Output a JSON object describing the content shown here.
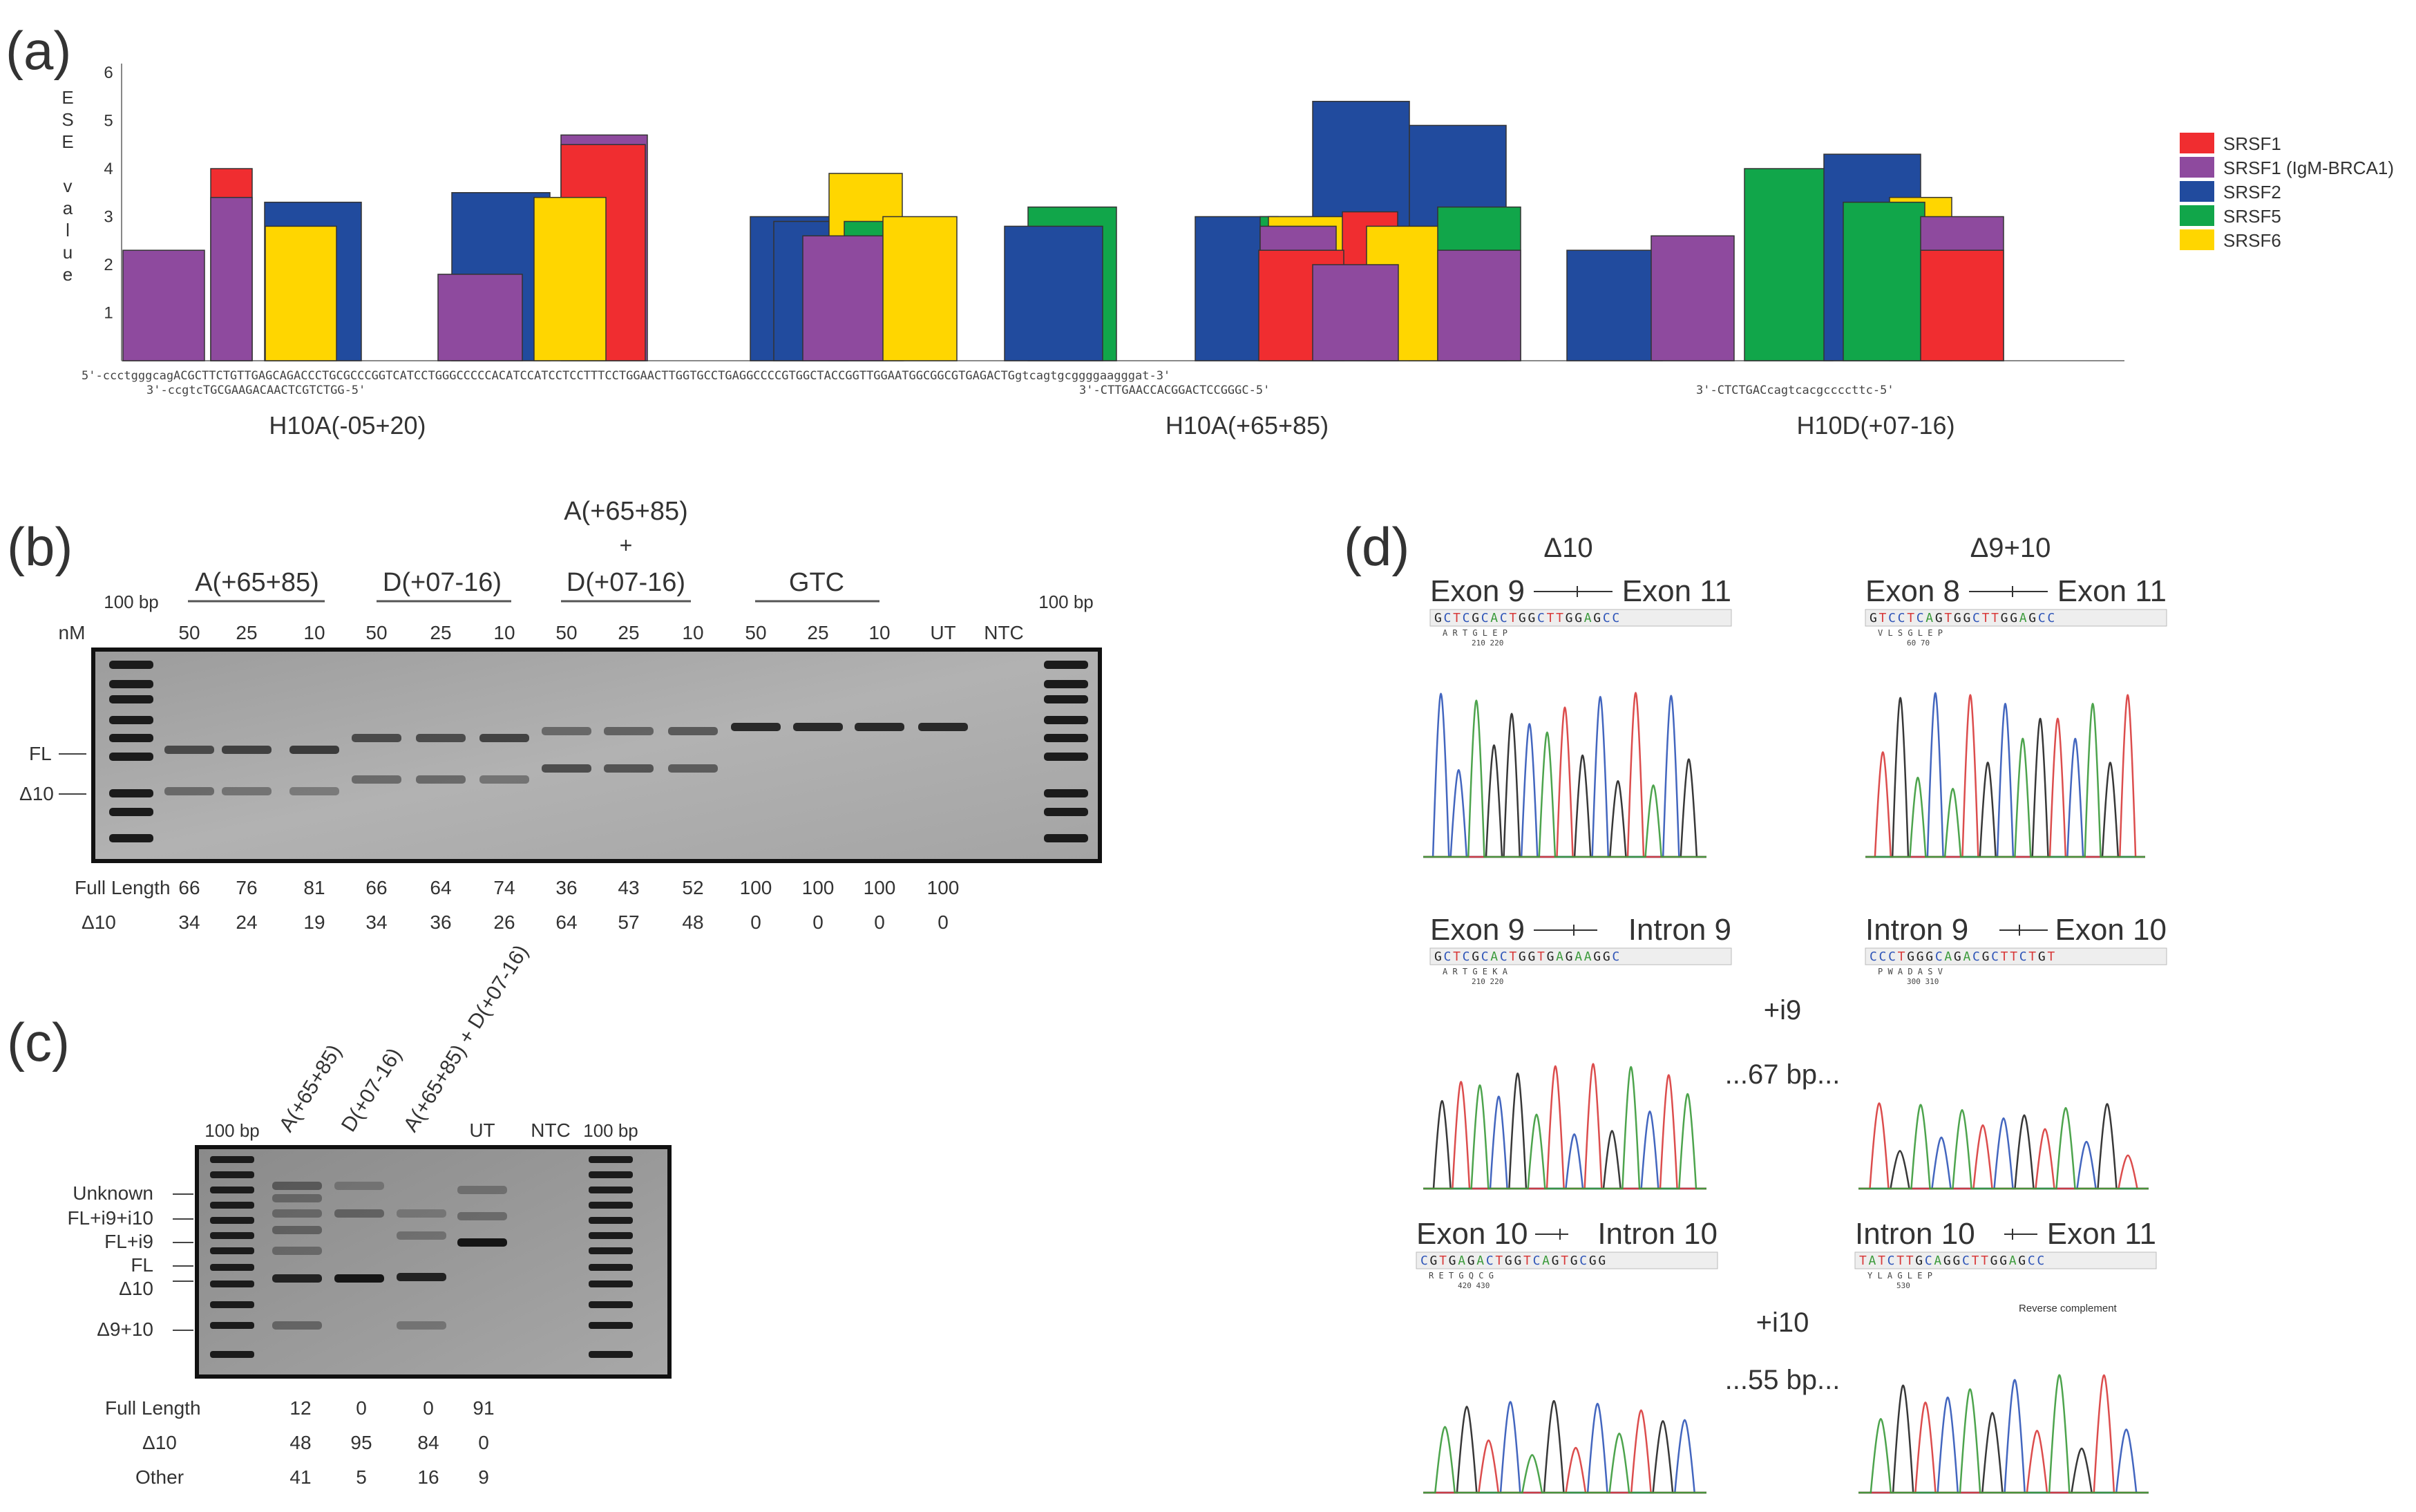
{
  "panels": {
    "a": "(a)",
    "b": "(b)",
    "c": "(c)",
    "d": "(d)"
  },
  "panel_a": {
    "y_axis_letters": [
      "E",
      "S",
      "E",
      "",
      "v",
      "a",
      "l",
      "u",
      "e"
    ],
    "y_ticks": [
      "1",
      "2",
      "3",
      "4",
      "5",
      "6"
    ],
    "seq_top": "5'-ccctgggcagACGCTTCTGTTGAGCAGACCCTGCGCCCGGTCATCCTGGGCCCCCACATCCATCCTCCTTTCCTGGAACTTGGTGCCTGAGGCCCCGTGGCTACCGGTTGGAATGGCGGCGTGAGACTGgtcagtgcggggaagggat-3'",
    "seq_bottom_1": "3'-ccgtcTGCGAAGACAACTCGTCTGG-5'",
    "seq_bottom_2": "3'-CTTGAACCACGGACTCCGGGC-5'",
    "seq_bottom_3": "3'-CTCTGACcagtcacgccccttc-5'",
    "group_labels": [
      "H10A(-05+20)",
      "H10A(+65+85)",
      "H10D(+07-16)"
    ],
    "legend": [
      {
        "label": "SRSF1",
        "color": "#f02d30"
      },
      {
        "label": "SRSF1 (IgM-BRCA1)",
        "color": "#8e4a9e"
      },
      {
        "label": "SRSF2",
        "color": "#214b9e"
      },
      {
        "label": "SRSF5",
        "color": "#11a64a"
      },
      {
        "label": "SRSF6",
        "color": "#ffd600"
      }
    ]
  },
  "chart_data": {
    "type": "bar",
    "title": "ESE value",
    "ylabel": "ESE value",
    "ylim": [
      0,
      6
    ],
    "note": "overlapping ESE motif bars along exon 10 sequence; values approximate",
    "bars": [
      {
        "factor": "SRSF1 (IgM-BRCA1)",
        "value": 2.3
      },
      {
        "factor": "SRSF1",
        "value": 4.0
      },
      {
        "factor": "SRSF1 (IgM-BRCA1)",
        "value": 3.4
      },
      {
        "factor": "SRSF2",
        "value": 3.3
      },
      {
        "factor": "SRSF6",
        "value": 2.8
      },
      {
        "factor": "SRSF2",
        "value": 3.5
      },
      {
        "factor": "SRSF1 (IgM-BRCA1)",
        "value": 1.8
      },
      {
        "factor": "SRSF1 (IgM-BRCA1)",
        "value": 4.7
      },
      {
        "factor": "SRSF1",
        "value": 4.5
      },
      {
        "factor": "SRSF6",
        "value": 3.4
      },
      {
        "factor": "SRSF2",
        "value": 3.0
      },
      {
        "factor": "SRSF2",
        "value": 2.9
      },
      {
        "factor": "SRSF6",
        "value": 3.9
      },
      {
        "factor": "SRSF5",
        "value": 2.9
      },
      {
        "factor": "SRSF1 (IgM-BRCA1)",
        "value": 2.6
      },
      {
        "factor": "SRSF6",
        "value": 3.0
      },
      {
        "factor": "SRSF5",
        "value": 3.2
      },
      {
        "factor": "SRSF2",
        "value": 2.8
      },
      {
        "factor": "SRSF2",
        "value": 3.0
      },
      {
        "factor": "SRSF5",
        "value": 3.0
      },
      {
        "factor": "SRSF2",
        "value": 5.4
      },
      {
        "factor": "SRSF6",
        "value": 3.0
      },
      {
        "factor": "SRSF1",
        "value": 3.1
      },
      {
        "factor": "SRSF2",
        "value": 4.9
      },
      {
        "factor": "SRSF1 (IgM-BRCA1)",
        "value": 2.8
      },
      {
        "factor": "SRSF1",
        "value": 2.3
      },
      {
        "factor": "SRSF6",
        "value": 2.8
      },
      {
        "factor": "SRSF1 (IgM-BRCA1)",
        "value": 2.0
      },
      {
        "factor": "SRSF5",
        "value": 3.2
      },
      {
        "factor": "SRSF1 (IgM-BRCA1)",
        "value": 2.3
      },
      {
        "factor": "SRSF2",
        "value": 2.3
      },
      {
        "factor": "SRSF1 (IgM-BRCA1)",
        "value": 2.6
      },
      {
        "factor": "SRSF5",
        "value": 4.0
      },
      {
        "factor": "SRSF2",
        "value": 4.3
      },
      {
        "factor": "SRSF6",
        "value": 3.4
      },
      {
        "factor": "SRSF5",
        "value": 3.3
      },
      {
        "factor": "SRSF1 (IgM-BRCA1)",
        "value": 3.0
      },
      {
        "factor": "SRSF1",
        "value": 2.3
      }
    ]
  },
  "panel_b": {
    "group_labels": [
      "A(+65+85)",
      "D(+07-16)",
      "A(+65+85)",
      "+",
      "D(+07-16)",
      "GTC"
    ],
    "ladder": "100 bp",
    "nM": "nM",
    "lanes": [
      "50",
      "25",
      "10",
      "50",
      "25",
      "10",
      "50",
      "25",
      "10",
      "50",
      "25",
      "10",
      "UT",
      "NTC"
    ],
    "band_labels": [
      "FL",
      "Δ10"
    ],
    "row_labels": [
      "Full Length",
      "Δ10"
    ],
    "full_length": [
      "66",
      "76",
      "81",
      "66",
      "64",
      "74",
      "36",
      "43",
      "52",
      "100",
      "100",
      "100",
      "100"
    ],
    "delta10": [
      "34",
      "24",
      "19",
      "34",
      "36",
      "26",
      "64",
      "57",
      "48",
      "0",
      "0",
      "0",
      "0"
    ],
    "fl_fraction": [
      0.66,
      0.76,
      0.81,
      0.66,
      0.64,
      0.74,
      0.36,
      0.43,
      0.52,
      1.0,
      1.0,
      1.0,
      1.0
    ]
  },
  "panel_c": {
    "lane_labels": [
      "A(+65+85)",
      "D(+07-16)",
      "A(+65+85) + D(+07-16)"
    ],
    "ut": "UT",
    "ntc": "NTC",
    "ladder": "100 bp",
    "band_labels": [
      "Unknown",
      "FL+i9+i10",
      "FL+i9",
      "FL",
      "Δ10",
      "Δ9+10"
    ],
    "row_labels": [
      "Full Length",
      "Δ10",
      "Other"
    ],
    "full_length": [
      "12",
      "0",
      "0",
      "91"
    ],
    "delta10": [
      "48",
      "95",
      "84",
      "0"
    ],
    "other": [
      "41",
      "5",
      "16",
      "9"
    ]
  },
  "panel_d": {
    "col_titles": [
      "Δ10",
      "Δ9+10"
    ],
    "junctions": [
      {
        "left": "Exon 9",
        "right": "Exon 11",
        "seq": "GCTCGCACTGGCTTGGAGCC",
        "aa": "A    R    T    G    L    E    P",
        "pos": "210        220"
      },
      {
        "left": "Exon 8",
        "right": "Exon 11",
        "seq": "GTCCTCAGTGGCTTGGAGCC",
        "aa": "V    L    S    G    L    E    P",
        "pos": "60          70"
      },
      {
        "left": "Exon 9",
        "right": "Intron 9",
        "seq": "GCTCGCACTGGTGAGAAGGC",
        "aa": "A    R    T    G    E    K    A",
        "pos": "210        220"
      },
      {
        "left": "Intron 9",
        "right": "Exon 10",
        "seq": "CCCTGGGCAGACGCTTCTGT",
        "aa": "P    W    A    D    A    S    V",
        "pos": "300        310"
      },
      {
        "left": "Exon 10",
        "right": "Intron 10",
        "seq": "CGTGAGACTGGTCAGTGCGG",
        "aa": "R    E    T    G    Q    C    G",
        "pos": "420        430"
      },
      {
        "left": "Intron 10",
        "right": "Exon 11",
        "seq": "TATCTTGCAGGCTTGGAGCC",
        "aa": "Y    L    A    G    L    E    P",
        "pos": "530"
      }
    ],
    "middle_labels": [
      "+i9",
      "...67 bp...",
      "+i10",
      "...55 bp..."
    ],
    "reverse_complement": "Reverse complement"
  }
}
